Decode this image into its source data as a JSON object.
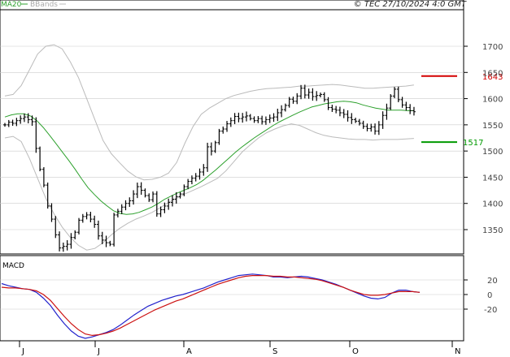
{
  "header": {
    "legend_ma": "MA20",
    "legend_bb": "BBands",
    "copyright": "© TEC 27/10/2024 4:0 GMT"
  },
  "colors": {
    "ma": "#2ca02c",
    "bbands": "#bbbbbb",
    "bars": "#000000",
    "macd": "#2222cc",
    "signal": "#cc1111",
    "resistance": "#d40000",
    "support": "#009900",
    "grid": "#cccccc"
  },
  "chart_data": [
    {
      "type": "ohlc",
      "name": "price",
      "x_labels": [
        "J",
        "J",
        "A",
        "S",
        "O",
        "N"
      ],
      "yticks": [
        1350,
        1400,
        1450,
        1500,
        1550,
        1600,
        1650,
        1700
      ],
      "ylim": [
        1310,
        1730
      ],
      "grid": true,
      "annotations": [
        {
          "label": "1643",
          "value": 1643,
          "kind": "resistance"
        },
        {
          "label": "1517",
          "value": 1517,
          "kind": "support"
        }
      ],
      "bars_n": 106,
      "close": [
        1550,
        1555,
        1553,
        1558,
        1562,
        1565,
        1560,
        1556,
        1505,
        1465,
        1435,
        1395,
        1370,
        1340,
        1315,
        1318,
        1322,
        1335,
        1345,
        1368,
        1375,
        1378,
        1370,
        1360,
        1338,
        1330,
        1325,
        1322,
        1378,
        1385,
        1393,
        1400,
        1405,
        1418,
        1432,
        1425,
        1415,
        1407,
        1418,
        1380,
        1388,
        1395,
        1402,
        1408,
        1413,
        1418,
        1432,
        1442,
        1448,
        1452,
        1460,
        1468,
        1508,
        1500,
        1516,
        1538,
        1542,
        1552,
        1558,
        1566,
        1562,
        1565,
        1567,
        1562,
        1558,
        1562,
        1556,
        1560,
        1563,
        1565,
        1573,
        1579,
        1587,
        1599,
        1595,
        1605,
        1620,
        1607,
        1612,
        1604,
        1606,
        1608,
        1598,
        1583,
        1580,
        1578,
        1573,
        1570,
        1564,
        1560,
        1557,
        1553,
        1547,
        1543,
        1546,
        1538,
        1550,
        1568,
        1582,
        1605,
        1618,
        1598,
        1588,
        1583,
        1577,
        1575
      ],
      "ma20": [
        1565,
        1569,
        1571,
        1571,
        1567,
        1558,
        1545,
        1530,
        1514,
        1498,
        1482,
        1465,
        1447,
        1430,
        1417,
        1405,
        1395,
        1386,
        1381,
        1379,
        1380,
        1383,
        1388,
        1393,
        1400,
        1408,
        1414,
        1420,
        1425,
        1430,
        1436,
        1444,
        1454,
        1464,
        1475,
        1486,
        1497,
        1507,
        1516,
        1525,
        1533,
        1541,
        1549,
        1556,
        1562,
        1568,
        1574,
        1579,
        1584,
        1587,
        1590,
        1592,
        1594,
        1595,
        1594,
        1592,
        1588,
        1585,
        1582,
        1580,
        1578,
        1578,
        1578,
        1577,
        1577
      ],
      "ma20_start_bar": 0,
      "bb_upper": [
        1605,
        1608,
        1625,
        1655,
        1685,
        1700,
        1703,
        1695,
        1670,
        1640,
        1600,
        1560,
        1520,
        1495,
        1478,
        1462,
        1451,
        1445,
        1446,
        1450,
        1458,
        1478,
        1515,
        1547,
        1570,
        1582,
        1591,
        1600,
        1606,
        1610,
        1614,
        1617,
        1619,
        1620,
        1621,
        1622,
        1624,
        1624,
        1625,
        1626,
        1627,
        1626,
        1624,
        1622,
        1620,
        1620,
        1621,
        1622,
        1623,
        1624,
        1626
      ],
      "bb_lower": [
        1525,
        1528,
        1518,
        1486,
        1448,
        1410,
        1380,
        1355,
        1335,
        1320,
        1311,
        1314,
        1325,
        1340,
        1352,
        1362,
        1370,
        1376,
        1383,
        1392,
        1402,
        1410,
        1418,
        1425,
        1432,
        1440,
        1448,
        1462,
        1480,
        1498,
        1512,
        1525,
        1535,
        1542,
        1548,
        1552,
        1549,
        1542,
        1535,
        1530,
        1527,
        1525,
        1523,
        1522,
        1522,
        1521,
        1522,
        1522,
        1522,
        1523,
        1524
      ]
    },
    {
      "type": "line",
      "name": "MACD",
      "title": "MACD",
      "yticks_labels": [
        "20",
        "0",
        "-20"
      ],
      "yticks": [
        20,
        0,
        -20
      ],
      "ylim": [
        -65,
        30
      ],
      "series": [
        {
          "name": "MACD",
          "values": [
            15,
            12,
            10,
            8,
            7,
            3,
            -5,
            -15,
            -28,
            -40,
            -50,
            -57,
            -60,
            -58,
            -55,
            -52,
            -48,
            -42,
            -35,
            -28,
            -22,
            -16,
            -12,
            -8,
            -5,
            -2,
            0,
            3,
            6,
            9,
            13,
            17,
            20,
            23,
            26,
            27,
            28,
            27,
            26,
            24,
            24,
            23,
            24,
            25,
            24,
            22,
            20,
            17,
            14,
            10,
            6,
            2,
            -2,
            -5,
            -6,
            -4,
            2,
            6,
            6,
            4,
            3
          ]
        },
        {
          "name": "signal",
          "values": [
            10,
            9,
            9,
            8,
            7,
            5,
            0,
            -8,
            -19,
            -30,
            -40,
            -48,
            -54,
            -56,
            -55,
            -53,
            -50,
            -46,
            -41,
            -36,
            -31,
            -26,
            -21,
            -17,
            -13,
            -9,
            -6,
            -2,
            2,
            6,
            10,
            14,
            17,
            20,
            23,
            25,
            26,
            26,
            26,
            25,
            25,
            24,
            24,
            23,
            22,
            21,
            19,
            16,
            13,
            10,
            6,
            3,
            0,
            -1,
            -1,
            0,
            2,
            4,
            4,
            4,
            3
          ]
        }
      ]
    }
  ]
}
